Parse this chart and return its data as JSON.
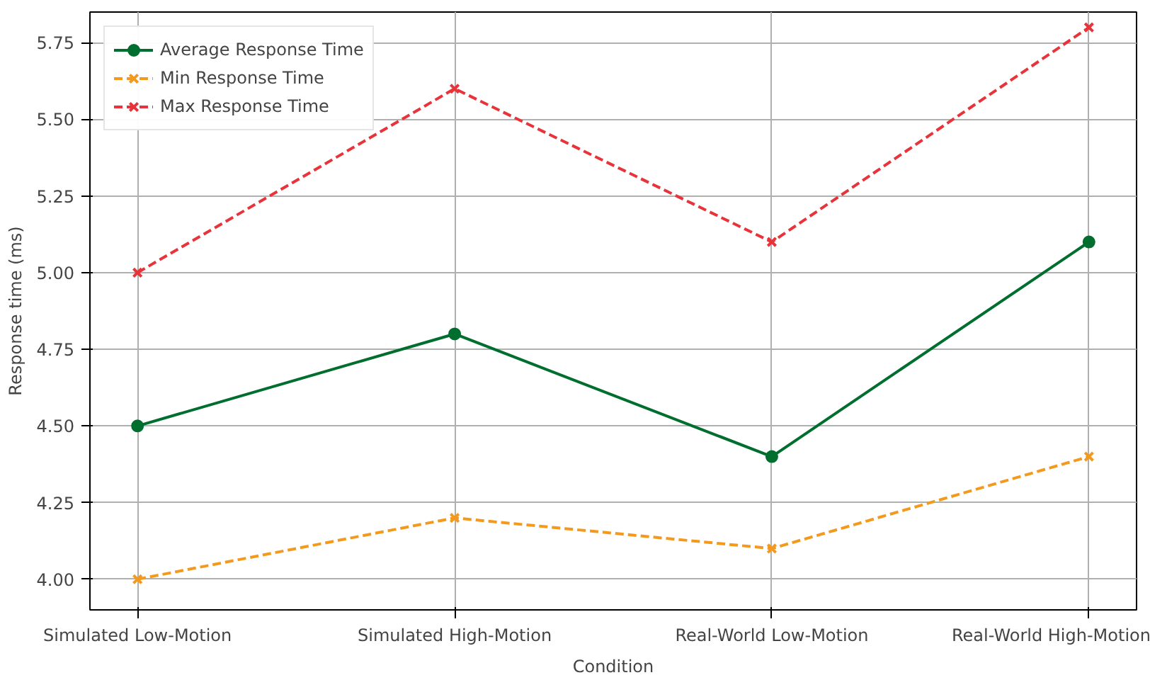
{
  "chart_data": {
    "type": "line",
    "xlabel": "Condition",
    "ylabel": "Response time (ms)",
    "categories": [
      "Simulated Low-Motion",
      "Simulated High-Motion",
      "Real-World Low-Motion",
      "Real-World High-Motion"
    ],
    "series": [
      {
        "name": "Average Response Time",
        "color": "#006e2e",
        "values": [
          4.5,
          4.8,
          4.4,
          5.1
        ],
        "marker": "circle",
        "line_style": "solid"
      },
      {
        "name": "Min Response Time",
        "color": "#f39a1e",
        "values": [
          4.0,
          4.2,
          4.1,
          4.4
        ],
        "marker": "cross",
        "line_style": "dashed"
      },
      {
        "name": "Max Response Time",
        "color": "#e8333a",
        "values": [
          5.0,
          5.6,
          5.1,
          5.8
        ],
        "marker": "cross",
        "line_style": "dashed"
      }
    ],
    "ylim": [
      3.9,
      5.85
    ],
    "yticks": [
      {
        "value": 4.0,
        "label": "4.00"
      },
      {
        "value": 4.25,
        "label": "4.25"
      },
      {
        "value": 4.5,
        "label": "4.50"
      },
      {
        "value": 4.75,
        "label": "4.75"
      },
      {
        "value": 5.0,
        "label": "5.00"
      },
      {
        "value": 5.25,
        "label": "5.25"
      },
      {
        "value": 5.5,
        "label": "5.50"
      },
      {
        "value": 5.75,
        "label": "5.75"
      }
    ],
    "grid": true,
    "legend": "top left"
  }
}
